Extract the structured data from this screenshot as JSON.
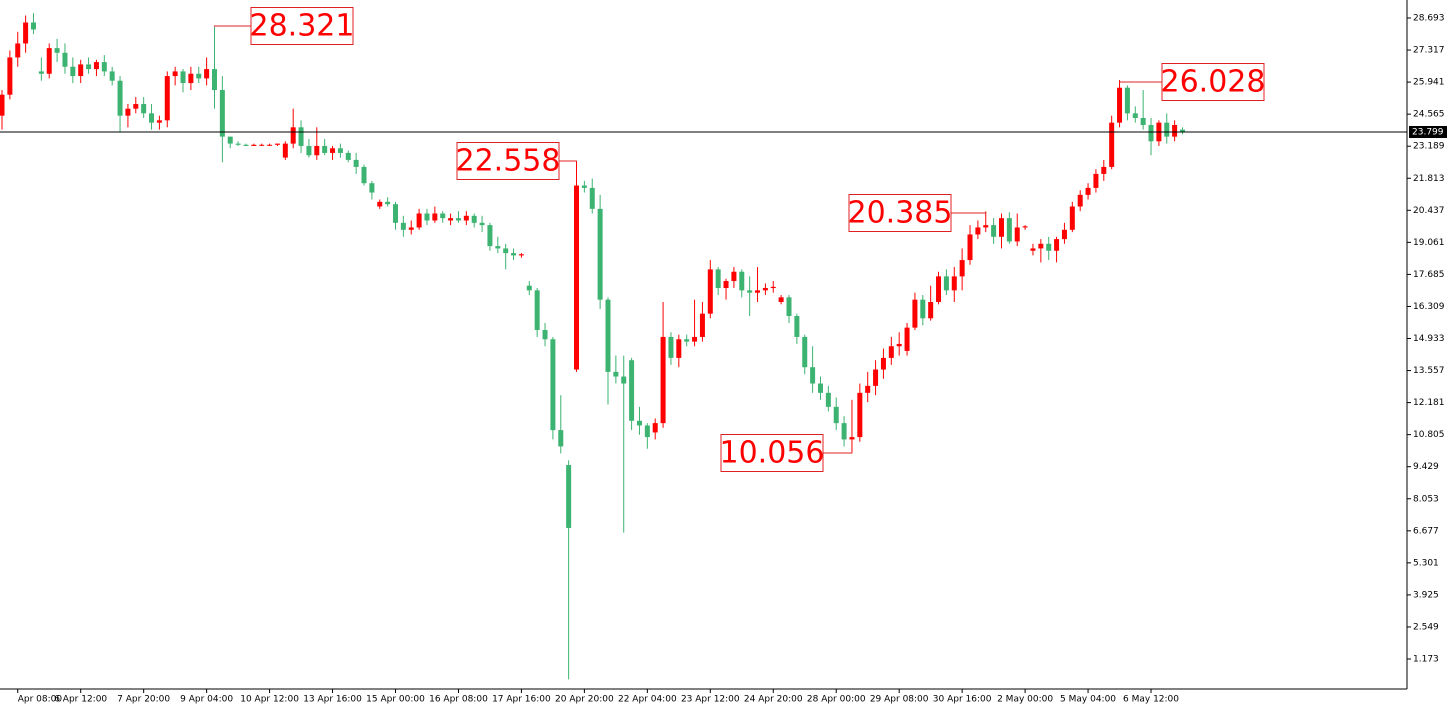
{
  "chart_data": {
    "type": "candlestick",
    "categories": [
      null,
      null,
      "Apr 08:00",
      null,
      null,
      null,
      null,
      null,
      null,
      null,
      "6 Apr 12:00",
      null,
      null,
      null,
      null,
      null,
      null,
      null,
      "7 Apr 20:00",
      null,
      null,
      null,
      null,
      null,
      null,
      null,
      "9 Apr 04:00",
      null,
      null,
      null,
      null,
      null,
      null,
      null,
      "10 Apr 12:00",
      null,
      null,
      null,
      null,
      null,
      null,
      null,
      "13 Apr 16:00",
      null,
      null,
      null,
      null,
      null,
      null,
      null,
      "15 Apr 00:00",
      null,
      null,
      null,
      null,
      null,
      null,
      null,
      "16 Apr 08:00",
      null,
      null,
      null,
      null,
      null,
      null,
      null,
      "17 Apr 16:00",
      null,
      null,
      null,
      null,
      null,
      null,
      null,
      "20 Apr 20:00",
      null,
      null,
      null,
      null,
      null,
      null,
      null,
      "22 Apr 04:00",
      null,
      null,
      null,
      null,
      null,
      null,
      null,
      "23 Apr 12:00",
      null,
      null,
      null,
      null,
      null,
      null,
      null,
      "24 Apr 20:00",
      null,
      null,
      null,
      null,
      null,
      null,
      null,
      "28 Apr 00:00",
      null,
      null,
      null,
      null,
      null,
      null,
      null,
      "29 Apr 08:00",
      null,
      null,
      null,
      null,
      null,
      null,
      null,
      "30 Apr 16:00",
      null,
      null,
      null,
      null,
      null,
      null,
      null,
      "2 May 00:00",
      null,
      null,
      null,
      null,
      null,
      null,
      null,
      "5 May 04:00",
      null,
      null,
      null,
      null,
      null,
      null,
      null,
      "6 May 12:00",
      null,
      null,
      null,
      null
    ],
    "ohlc": [
      [
        24.5,
        25.6,
        23.9,
        25.4
      ],
      [
        25.4,
        27.3,
        25.2,
        27.0
      ],
      [
        27.0,
        28.1,
        26.6,
        27.6
      ],
      [
        27.6,
        28.8,
        27.2,
        28.5
      ],
      [
        28.5,
        28.9,
        28.0,
        28.2
      ],
      [
        26.4,
        27.0,
        26.0,
        26.3
      ],
      [
        26.3,
        27.6,
        26.1,
        27.4
      ],
      [
        27.4,
        27.8,
        26.8,
        27.2
      ],
      [
        27.2,
        27.6,
        26.3,
        26.6
      ],
      [
        26.6,
        27.0,
        25.9,
        26.2
      ],
      [
        26.2,
        26.9,
        25.9,
        26.7
      ],
      [
        26.7,
        27.0,
        26.3,
        26.5
      ],
      [
        26.5,
        26.9,
        26.2,
        26.8
      ],
      [
        26.8,
        27.1,
        26.2,
        26.4
      ],
      [
        26.4,
        26.6,
        25.8,
        26.0
      ],
      [
        26.0,
        26.2,
        23.8,
        24.5
      ],
      [
        24.5,
        25.0,
        24.0,
        24.8
      ],
      [
        24.8,
        25.3,
        24.6,
        25.0
      ],
      [
        25.0,
        25.3,
        24.4,
        24.6
      ],
      [
        24.6,
        25.0,
        23.9,
        24.2
      ],
      [
        24.2,
        24.5,
        23.9,
        24.3
      ],
      [
        24.3,
        26.4,
        24.0,
        26.2
      ],
      [
        26.2,
        26.6,
        25.8,
        26.4
      ],
      [
        26.4,
        26.5,
        25.5,
        25.9
      ],
      [
        25.9,
        26.6,
        25.6,
        26.3
      ],
      [
        26.3,
        26.6,
        25.9,
        26.1
      ],
      [
        26.1,
        27.0,
        25.8,
        26.5
      ],
      [
        26.5,
        28.321,
        24.8,
        25.6
      ],
      [
        25.6,
        26.2,
        22.5,
        23.6
      ],
      [
        23.6,
        23.6,
        23.1,
        23.3
      ],
      [
        23.3,
        23.4,
        23.2,
        23.25
      ],
      [
        23.25,
        23.3,
        23.2,
        23.2
      ],
      [
        23.2,
        23.3,
        23.2,
        23.25
      ],
      [
        23.25,
        23.3,
        23.2,
        23.25
      ],
      [
        23.25,
        23.3,
        23.2,
        23.25
      ],
      [
        23.25,
        23.3,
        23.2,
        23.3
      ],
      [
        22.7,
        23.4,
        22.6,
        23.3
      ],
      [
        23.3,
        24.8,
        23.1,
        24.0
      ],
      [
        24.0,
        24.3,
        22.9,
        23.2
      ],
      [
        23.2,
        23.5,
        22.7,
        22.8
      ],
      [
        22.8,
        24.0,
        22.6,
        23.2
      ],
      [
        23.2,
        23.5,
        22.8,
        22.9
      ],
      [
        22.9,
        23.2,
        22.6,
        23.1
      ],
      [
        23.1,
        23.3,
        22.7,
        22.9
      ],
      [
        22.9,
        23.0,
        22.5,
        22.6
      ],
      [
        22.6,
        22.9,
        22.0,
        22.3
      ],
      [
        22.3,
        22.4,
        21.5,
        21.6
      ],
      [
        21.6,
        21.7,
        20.9,
        21.2
      ],
      [
        20.6,
        20.9,
        20.5,
        20.8
      ],
      [
        20.8,
        21.0,
        20.6,
        20.7
      ],
      [
        20.7,
        20.8,
        19.6,
        19.9
      ],
      [
        19.9,
        20.2,
        19.3,
        19.6
      ],
      [
        19.6,
        20.0,
        19.4,
        19.7
      ],
      [
        19.7,
        20.5,
        19.6,
        20.3
      ],
      [
        20.3,
        20.5,
        19.8,
        20.0
      ],
      [
        20.0,
        20.6,
        19.9,
        20.3
      ],
      [
        20.3,
        20.4,
        19.9,
        20.1
      ],
      [
        20.0,
        20.3,
        19.8,
        20.1
      ],
      [
        20.1,
        20.4,
        19.9,
        20.0
      ],
      [
        20.0,
        20.4,
        19.8,
        20.2
      ],
      [
        20.2,
        20.3,
        19.7,
        19.9
      ],
      [
        19.9,
        20.2,
        19.5,
        19.8
      ],
      [
        19.8,
        19.9,
        18.7,
        18.9
      ],
      [
        18.9,
        19.3,
        18.6,
        18.8
      ],
      [
        18.8,
        19.0,
        17.9,
        18.6
      ],
      [
        18.6,
        18.8,
        18.3,
        18.5
      ],
      [
        18.5,
        18.6,
        18.4,
        18.55
      ],
      [
        17.2,
        17.4,
        16.8,
        17.0
      ],
      [
        17.0,
        17.1,
        15.0,
        15.3
      ],
      [
        15.3,
        15.6,
        14.6,
        14.9
      ],
      [
        14.9,
        15.0,
        10.6,
        11.0
      ],
      [
        11.0,
        12.5,
        10.0,
        10.3
      ],
      [
        9.5,
        9.7,
        0.3,
        6.8
      ],
      [
        13.6,
        22.558,
        13.5,
        21.5
      ],
      [
        21.5,
        21.7,
        21.2,
        21.4
      ],
      [
        21.4,
        21.8,
        20.3,
        20.5
      ],
      [
        20.5,
        21.1,
        16.2,
        16.6
      ],
      [
        16.6,
        16.7,
        12.1,
        13.5
      ],
      [
        13.5,
        14.2,
        13.0,
        13.3
      ],
      [
        13.3,
        14.2,
        6.6,
        13.0
      ],
      [
        14.0,
        14.1,
        11.0,
        11.4
      ],
      [
        11.4,
        12.0,
        10.8,
        11.2
      ],
      [
        11.2,
        11.3,
        10.2,
        10.7
      ],
      [
        10.9,
        11.5,
        10.6,
        11.3
      ],
      [
        11.3,
        16.5,
        11.1,
        15.0
      ],
      [
        15.0,
        15.2,
        13.8,
        14.1
      ],
      [
        14.1,
        15.1,
        13.7,
        14.9
      ],
      [
        14.9,
        15.1,
        14.6,
        14.8
      ],
      [
        14.8,
        16.6,
        14.6,
        15.0
      ],
      [
        15.0,
        16.5,
        14.8,
        16.0
      ],
      [
        16.0,
        18.3,
        15.8,
        17.9
      ],
      [
        17.9,
        18.0,
        16.8,
        17.1
      ],
      [
        17.1,
        17.5,
        16.6,
        17.4
      ],
      [
        17.4,
        18.0,
        17.1,
        17.8
      ],
      [
        17.8,
        17.9,
        16.7,
        17.0
      ],
      [
        17.0,
        17.6,
        15.9,
        16.9
      ],
      [
        16.9,
        18.0,
        16.5,
        17.0
      ],
      [
        17.0,
        17.3,
        16.8,
        17.1
      ],
      [
        17.1,
        17.4,
        16.9,
        17.15
      ],
      [
        16.5,
        16.8,
        16.4,
        16.7
      ],
      [
        16.7,
        16.8,
        15.6,
        15.9
      ],
      [
        15.9,
        16.0,
        14.7,
        15.0
      ],
      [
        15.0,
        15.1,
        13.4,
        13.7
      ],
      [
        13.7,
        14.6,
        12.6,
        13.0
      ],
      [
        13.0,
        13.3,
        12.3,
        12.6
      ],
      [
        12.6,
        12.9,
        11.8,
        12.0
      ],
      [
        12.0,
        12.4,
        11.0,
        11.3
      ],
      [
        11.3,
        11.6,
        10.3,
        10.6
      ],
      [
        10.6,
        12.3,
        10.056,
        10.7
      ],
      [
        10.7,
        13.0,
        10.5,
        12.6
      ],
      [
        12.6,
        13.5,
        12.2,
        12.9
      ],
      [
        12.9,
        14.0,
        12.5,
        13.6
      ],
      [
        13.6,
        14.5,
        13.2,
        14.1
      ],
      [
        14.1,
        15.0,
        13.8,
        14.6
      ],
      [
        14.6,
        15.2,
        14.2,
        14.7
      ],
      [
        14.4,
        15.6,
        14.2,
        15.4
      ],
      [
        15.4,
        16.9,
        15.3,
        16.6
      ],
      [
        16.6,
        16.8,
        15.5,
        15.8
      ],
      [
        15.8,
        17.2,
        15.7,
        16.5
      ],
      [
        16.5,
        17.8,
        16.4,
        17.6
      ],
      [
        17.6,
        17.9,
        16.8,
        17.0
      ],
      [
        17.0,
        18.0,
        16.5,
        17.6
      ],
      [
        17.6,
        18.8,
        17.0,
        18.3
      ],
      [
        18.3,
        19.8,
        18.1,
        19.4
      ],
      [
        19.4,
        20.0,
        19.2,
        19.7
      ],
      [
        19.7,
        20.385,
        19.5,
        19.8
      ],
      [
        19.8,
        20.1,
        19.0,
        19.3
      ],
      [
        19.3,
        20.3,
        18.8,
        20.1
      ],
      [
        20.1,
        20.35,
        19.0,
        19.1
      ],
      [
        19.1,
        20.3,
        18.9,
        19.7
      ],
      [
        19.7,
        19.8,
        19.6,
        19.75
      ],
      [
        18.7,
        19.0,
        18.5,
        18.8
      ],
      [
        18.8,
        19.2,
        18.2,
        19.0
      ],
      [
        19.0,
        19.3,
        18.3,
        18.7
      ],
      [
        18.7,
        19.3,
        18.2,
        19.2
      ],
      [
        19.2,
        19.9,
        19.0,
        19.6
      ],
      [
        19.6,
        20.8,
        19.5,
        20.6
      ],
      [
        20.6,
        21.3,
        20.4,
        21.1
      ],
      [
        21.1,
        21.6,
        20.9,
        21.4
      ],
      [
        21.4,
        22.2,
        21.2,
        22.0
      ],
      [
        22.0,
        22.6,
        21.7,
        22.3
      ],
      [
        22.3,
        24.5,
        22.2,
        24.2
      ],
      [
        24.2,
        26.028,
        24.0,
        25.7
      ],
      [
        25.7,
        25.8,
        24.3,
        24.6
      ],
      [
        24.6,
        24.9,
        24.2,
        24.4
      ],
      [
        24.4,
        25.6,
        23.9,
        24.1
      ],
      [
        24.1,
        24.4,
        22.8,
        23.4
      ],
      [
        23.4,
        24.3,
        23.2,
        24.2
      ],
      [
        24.2,
        24.6,
        23.3,
        23.6
      ],
      [
        23.6,
        24.3,
        23.4,
        24.1
      ],
      [
        23.9,
        24.0,
        23.7,
        23.799
      ]
    ],
    "up_color": "#ff0000",
    "down_color": "#3cb371",
    "ylim": [
      -0.115,
      29.466
    ],
    "yticks": [
      1.173,
      2.549,
      3.925,
      5.301,
      6.677,
      8.053,
      9.429,
      10.805,
      12.181,
      13.557,
      14.933,
      16.309,
      17.685,
      19.061,
      20.437,
      21.813,
      23.189,
      24.565,
      25.941,
      27.317,
      28.693
    ],
    "annotations": [
      28.321,
      22.558,
      10.056,
      20.385,
      26.028
    ],
    "last_price": 23.799
  }
}
